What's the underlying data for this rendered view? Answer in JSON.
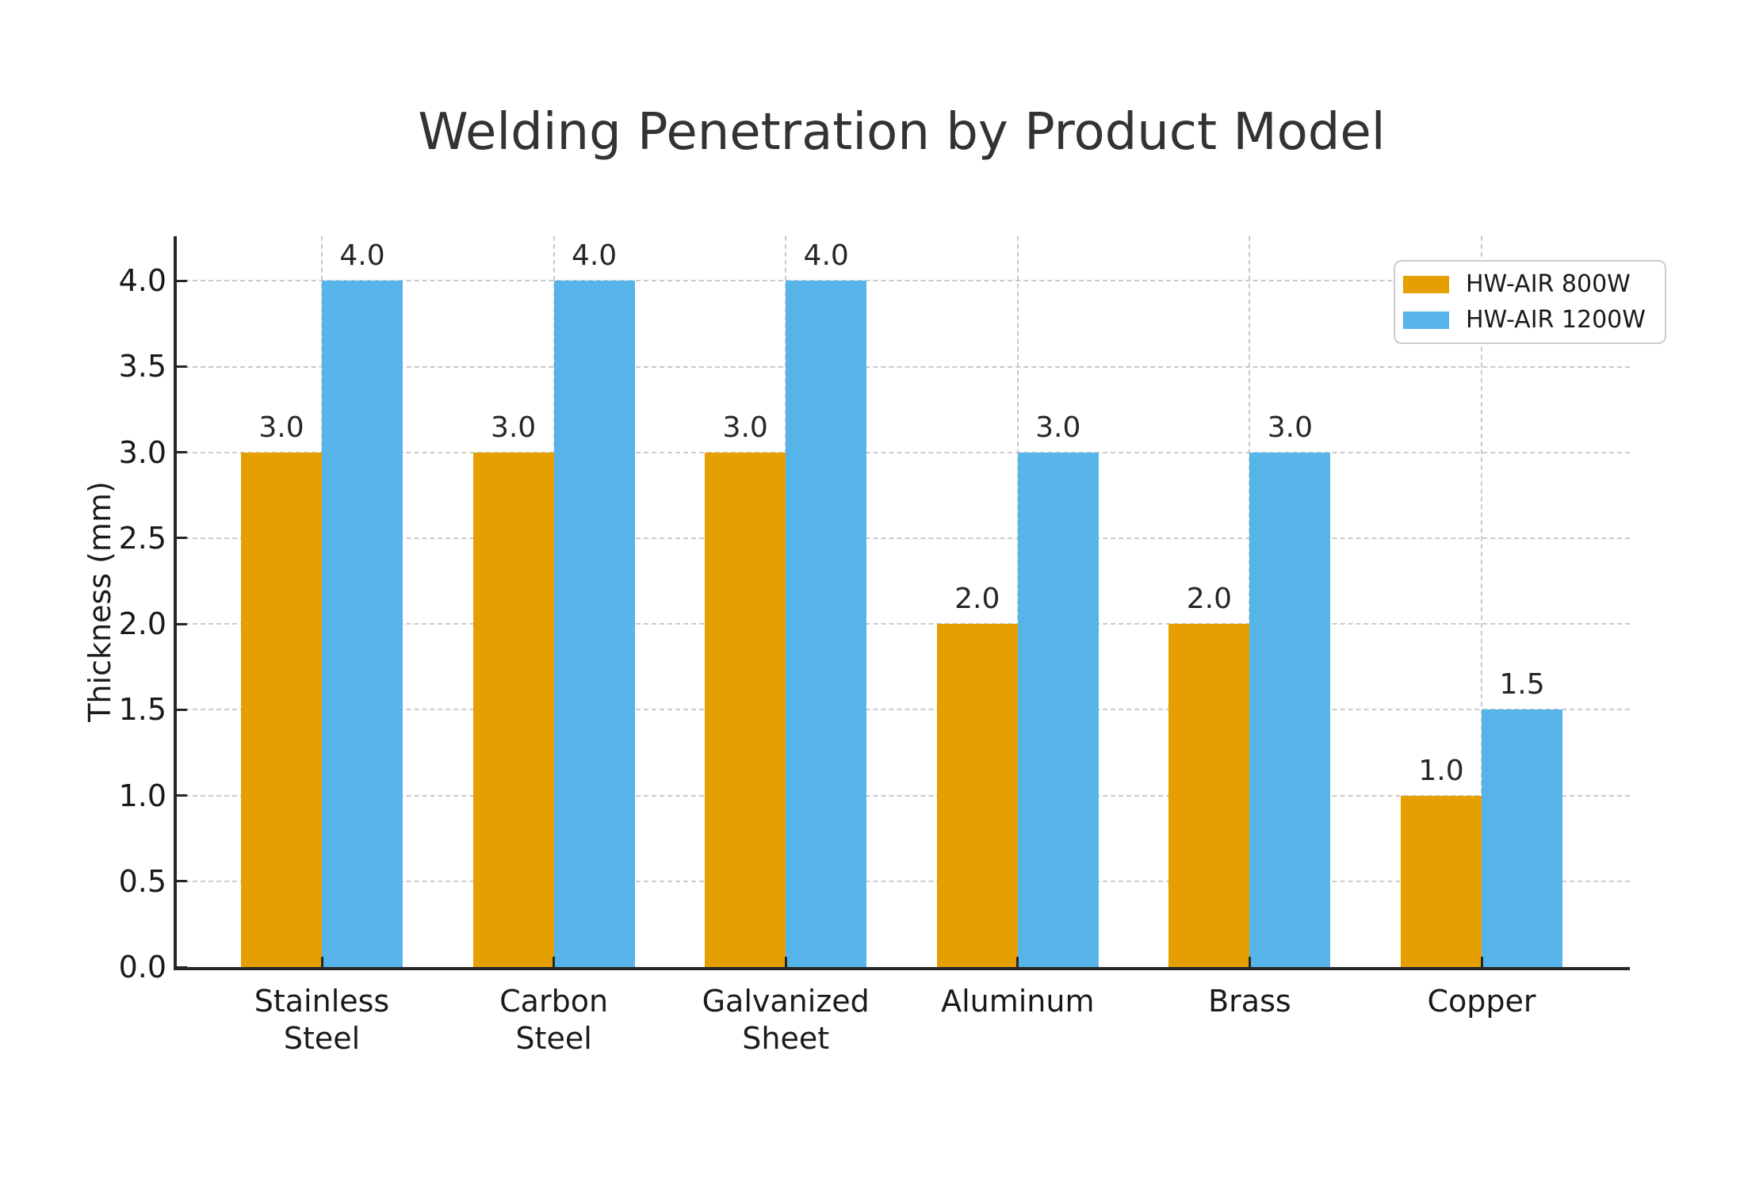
{
  "chart_data": {
    "type": "bar",
    "title": "Welding Penetration by Product Model",
    "ylabel": "Thickness (mm)",
    "categories": [
      "Stainless\nSteel",
      "Carbon\nSteel",
      "Galvanized\nSheet",
      "Aluminum",
      "Brass",
      "Copper"
    ],
    "series": [
      {
        "name": "HW-AIR 800W",
        "color": "#E69F00",
        "values": [
          3.0,
          3.0,
          3.0,
          2.0,
          2.0,
          1.0
        ],
        "labels": [
          "3.0",
          "3.0",
          "3.0",
          "2.0",
          "2.0",
          "1.0"
        ]
      },
      {
        "name": "HW-AIR 1200W",
        "color": "#56B4E9",
        "values": [
          4.0,
          4.0,
          4.0,
          3.0,
          3.0,
          1.5
        ],
        "labels": [
          "4.0",
          "4.0",
          "4.0",
          "3.0",
          "3.0",
          "1.5"
        ]
      }
    ],
    "yticks": [
      0.0,
      0.5,
      1.0,
      1.5,
      2.0,
      2.5,
      3.0,
      3.5,
      4.0
    ],
    "ytick_labels": [
      "0.0",
      "0.5",
      "1.0",
      "1.5",
      "2.0",
      "2.5",
      "3.0",
      "3.5",
      "4.0"
    ],
    "ylim": [
      0,
      4.26
    ],
    "grid": {
      "visible": true,
      "style": "dashed",
      "axes": "both",
      "color": "#c9c9c9"
    },
    "legend_position": "upper right",
    "bar_value_labels": true,
    "colors": {
      "spine": "#262626",
      "text": "#1a1a1a",
      "title": "#333333"
    }
  }
}
